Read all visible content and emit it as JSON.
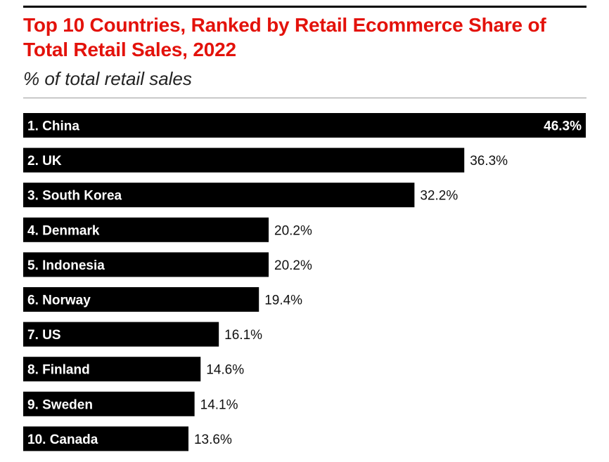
{
  "title": "Top 10 Countries, Ranked by Retail Ecommerce Share of Total Retail Sales, 2022",
  "subtitle": "% of total retail sales",
  "colors": {
    "title": "#e3120b",
    "bar": "#000000",
    "bar_label": "#ffffff",
    "value_label": "#111111"
  },
  "chart_data": {
    "type": "bar",
    "orientation": "horizontal",
    "categories": [
      "1. China",
      "2. UK",
      "3. South Korea",
      "4. Denmark",
      "5. Indonesia",
      "6. Norway",
      "7. US",
      "8. Finland",
      "9. Sweden",
      "10. Canada"
    ],
    "values": [
      46.3,
      36.3,
      32.2,
      20.2,
      20.2,
      19.4,
      16.1,
      14.6,
      14.1,
      13.6
    ],
    "value_labels": [
      "46.3%",
      "36.3%",
      "32.2%",
      "20.2%",
      "20.2%",
      "19.4%",
      "16.1%",
      "14.6%",
      "14.1%",
      "13.6%"
    ],
    "title": "Top 10 Countries, Ranked by Retail Ecommerce Share of Total Retail Sales, 2022",
    "subtitle": "% of total retail sales",
    "xlim": [
      0,
      46.3
    ],
    "grid": false,
    "legend": "none"
  }
}
